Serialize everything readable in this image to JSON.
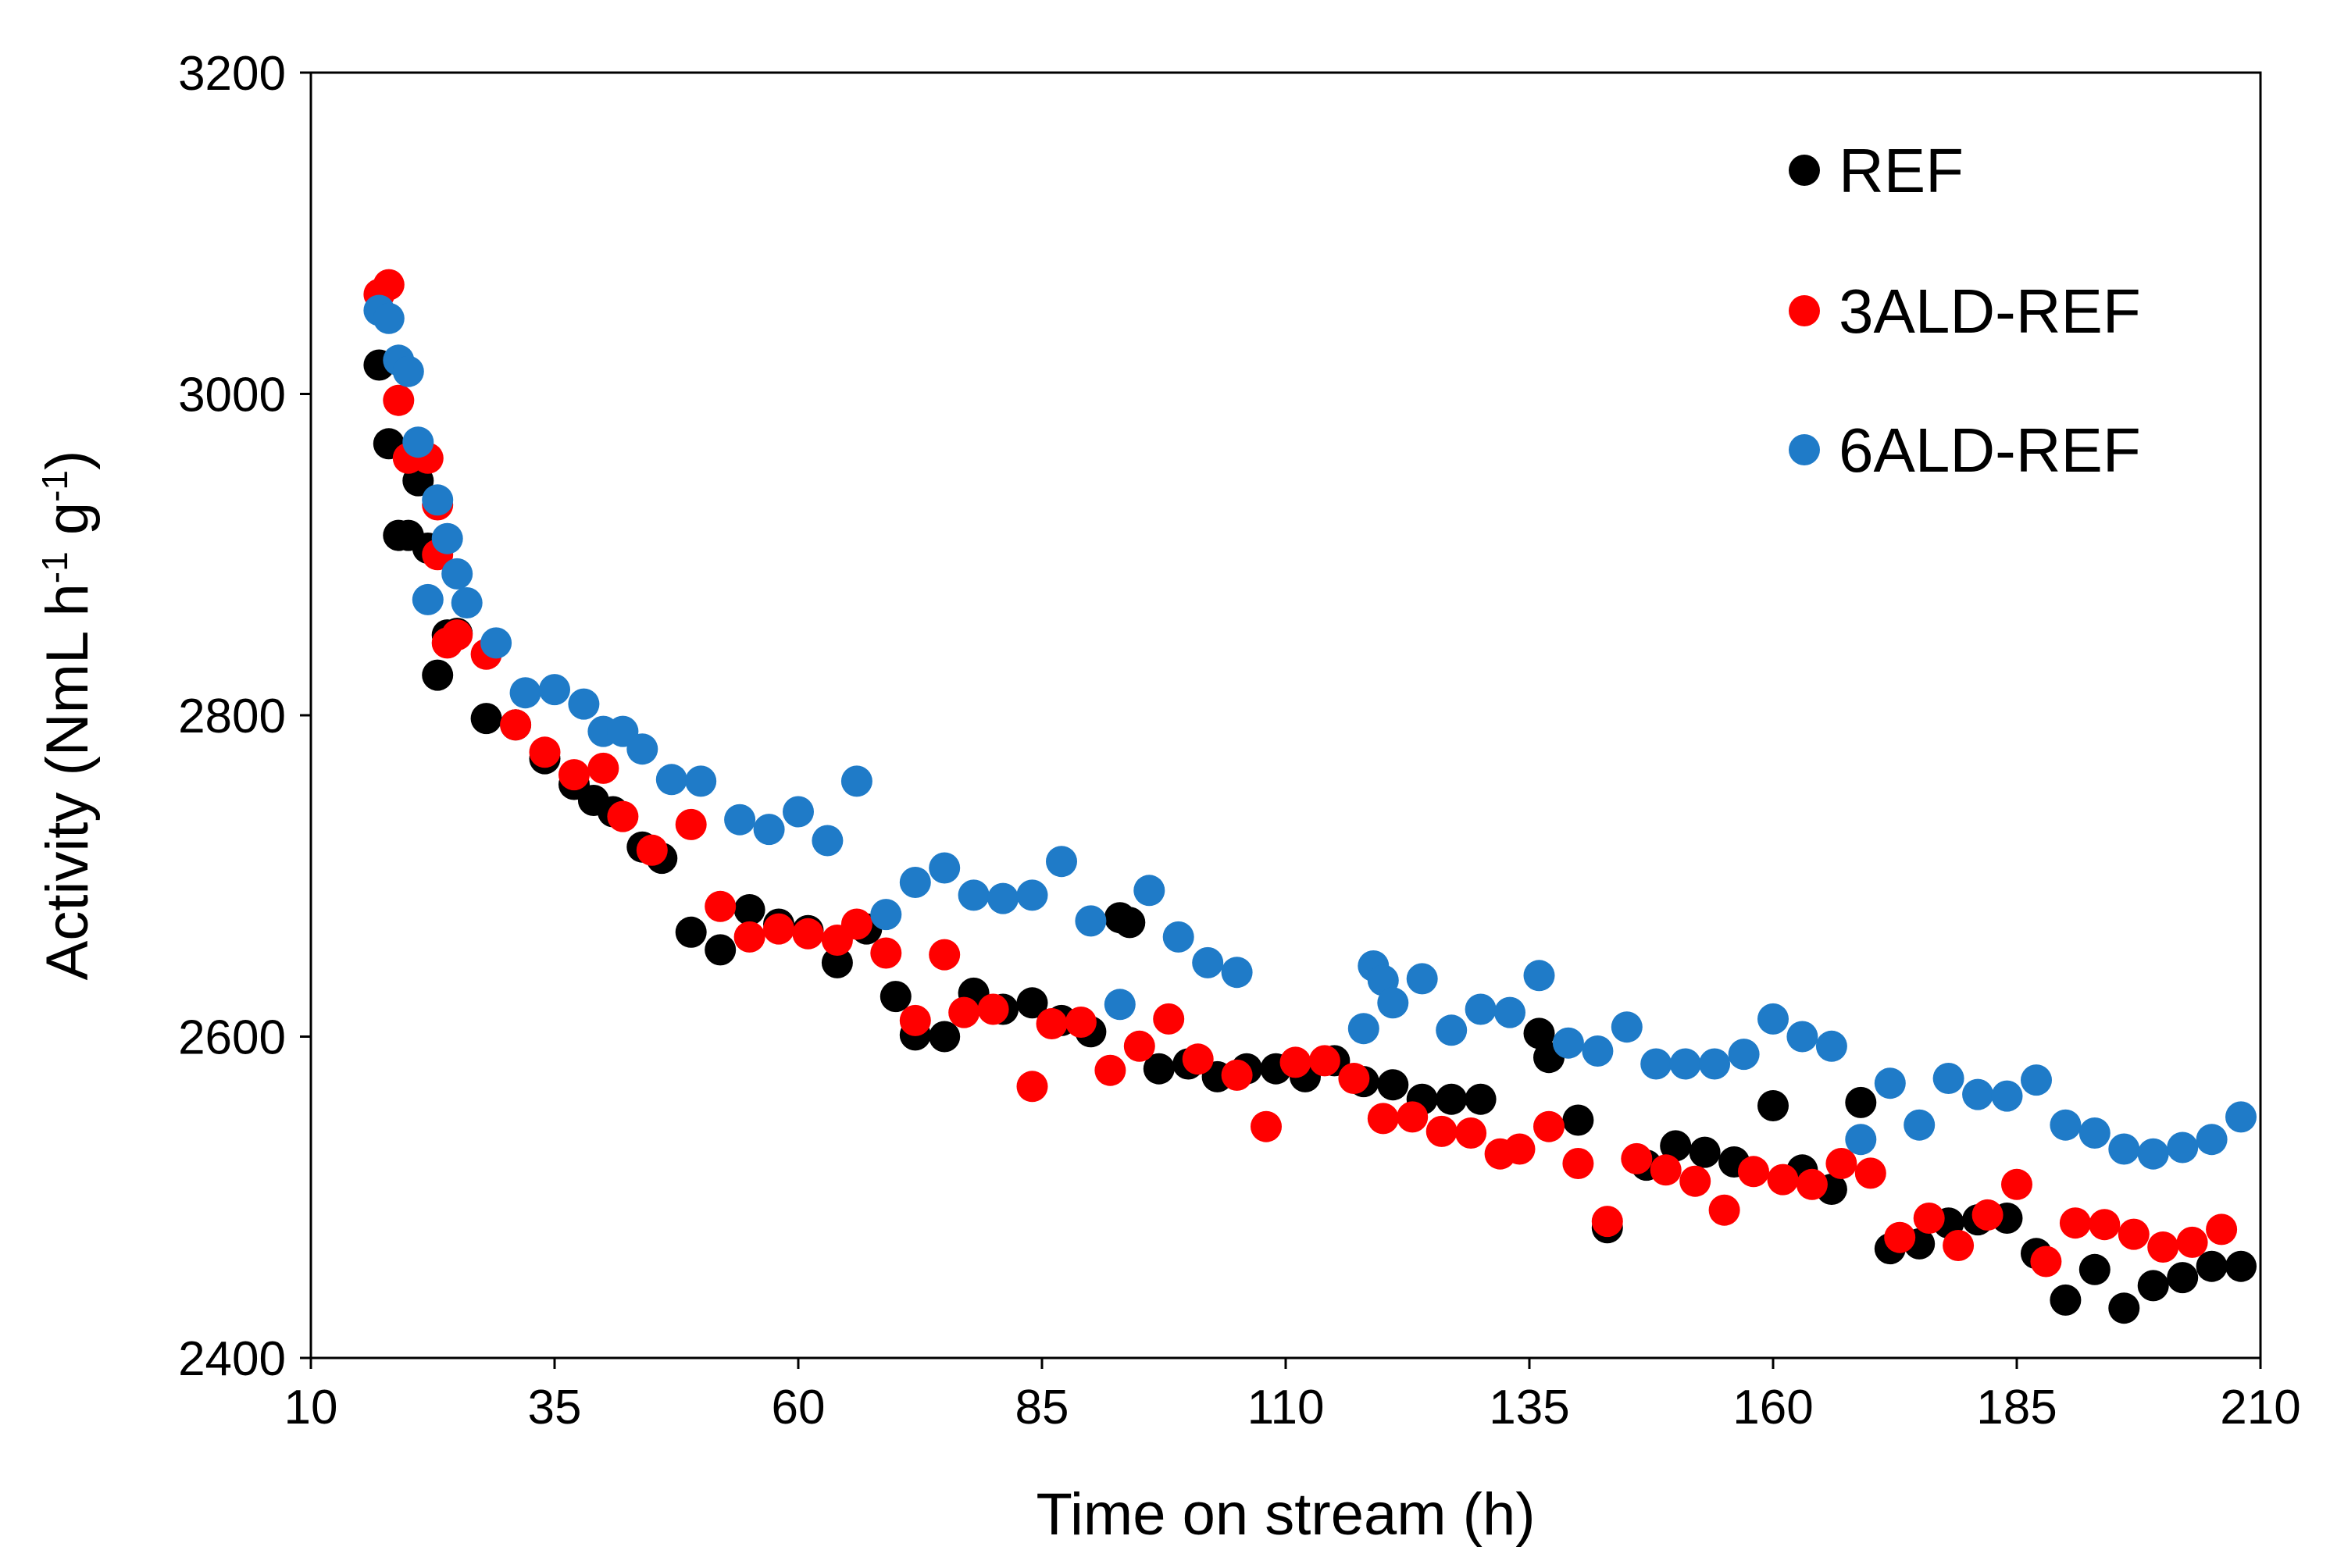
{
  "chart_data": {
    "type": "scatter",
    "xlabel": "Time on stream (h)",
    "ylabel": {
      "base": "Activity (NmL h",
      "sup1": "-1",
      "mid": " g",
      "sup2": "-1",
      "end": ")"
    },
    "xlim": [
      10,
      210
    ],
    "ylim": [
      2400,
      3200
    ],
    "x_ticks": [
      10,
      35,
      60,
      85,
      110,
      135,
      160,
      185,
      210
    ],
    "y_ticks": [
      2400,
      2600,
      2800,
      3000,
      3200
    ],
    "grid": false,
    "legend_position": "top-right",
    "series": [
      {
        "name": "REF",
        "color": "#000000",
        "points": [
          [
            17,
            3018
          ],
          [
            18,
            2969
          ],
          [
            19,
            2912
          ],
          [
            20,
            2912
          ],
          [
            21,
            2946
          ],
          [
            22,
            2904
          ],
          [
            23,
            2825
          ],
          [
            24,
            2850
          ],
          [
            25,
            2851
          ],
          [
            28,
            2798
          ],
          [
            31,
            2794
          ],
          [
            34,
            2773
          ],
          [
            37,
            2757
          ],
          [
            39,
            2747
          ],
          [
            41,
            2740
          ],
          [
            44,
            2718
          ],
          [
            46,
            2711
          ],
          [
            49,
            2665
          ],
          [
            52,
            2654
          ],
          [
            55,
            2679
          ],
          [
            58,
            2670
          ],
          [
            61,
            2666
          ],
          [
            64,
            2646
          ],
          [
            67,
            2667
          ],
          [
            70,
            2625
          ],
          [
            72,
            2601
          ],
          [
            75,
            2600
          ],
          [
            78,
            2627
          ],
          [
            81,
            2617
          ],
          [
            84,
            2621
          ],
          [
            87,
            2610
          ],
          [
            90,
            2603
          ],
          [
            93,
            2674
          ],
          [
            94,
            2671
          ],
          [
            97,
            2580
          ],
          [
            100,
            2583
          ],
          [
            103,
            2575
          ],
          [
            106,
            2580
          ],
          [
            109,
            2580
          ],
          [
            112,
            2575
          ],
          [
            115,
            2585
          ],
          [
            118,
            2572
          ],
          [
            121,
            2570
          ],
          [
            124,
            2561
          ],
          [
            127,
            2561
          ],
          [
            130,
            2561
          ],
          [
            136,
            2602
          ],
          [
            137,
            2587
          ],
          [
            140,
            2548
          ],
          [
            143,
            2481
          ],
          [
            147,
            2520
          ],
          [
            150,
            2532
          ],
          [
            153,
            2528
          ],
          [
            156,
            2522
          ],
          [
            160,
            2557
          ],
          [
            163,
            2517
          ],
          [
            166,
            2505
          ],
          [
            169,
            2559
          ],
          [
            172,
            2468
          ],
          [
            175,
            2471
          ],
          [
            178,
            2484
          ],
          [
            181,
            2486
          ],
          [
            184,
            2487
          ],
          [
            187,
            2465
          ],
          [
            190,
            2436
          ],
          [
            193,
            2455
          ],
          [
            196,
            2431
          ],
          [
            199,
            2445
          ],
          [
            202,
            2450
          ],
          [
            205,
            2457
          ],
          [
            208,
            2457
          ]
        ]
      },
      {
        "name": "3ALD-REF",
        "color": "#ff0000",
        "points": [
          [
            17,
            3062
          ],
          [
            18,
            3068
          ],
          [
            19,
            2996
          ],
          [
            20,
            2960
          ],
          [
            22,
            2960
          ],
          [
            23,
            2931
          ],
          [
            23,
            2900
          ],
          [
            24,
            2845
          ],
          [
            25,
            2850
          ],
          [
            28,
            2838
          ],
          [
            31,
            2794
          ],
          [
            34,
            2777
          ],
          [
            37,
            2763
          ],
          [
            40,
            2767
          ],
          [
            42,
            2737
          ],
          [
            45,
            2716
          ],
          [
            49,
            2732
          ],
          [
            52,
            2681
          ],
          [
            55,
            2662
          ],
          [
            58,
            2667
          ],
          [
            61,
            2664
          ],
          [
            64,
            2660
          ],
          [
            66,
            2670
          ],
          [
            69,
            2652
          ],
          [
            72,
            2610
          ],
          [
            75,
            2651
          ],
          [
            77,
            2615
          ],
          [
            80,
            2617
          ],
          [
            84,
            2569
          ],
          [
            86,
            2608
          ],
          [
            89,
            2609
          ],
          [
            92,
            2579
          ],
          [
            95,
            2594
          ],
          [
            98,
            2611
          ],
          [
            101,
            2586
          ],
          [
            105,
            2576
          ],
          [
            108,
            2544
          ],
          [
            111,
            2584
          ],
          [
            114,
            2585
          ],
          [
            117,
            2574
          ],
          [
            120,
            2549
          ],
          [
            123,
            2550
          ],
          [
            126,
            2541
          ],
          [
            129,
            2540
          ],
          [
            132,
            2527
          ],
          [
            134,
            2530
          ],
          [
            137,
            2544
          ],
          [
            140,
            2521
          ],
          [
            143,
            2485
          ],
          [
            146,
            2524
          ],
          [
            149,
            2517
          ],
          [
            152,
            2510
          ],
          [
            155,
            2492
          ],
          [
            158,
            2516
          ],
          [
            161,
            2511
          ],
          [
            164,
            2508
          ],
          [
            167,
            2521
          ],
          [
            170,
            2515
          ],
          [
            173,
            2475
          ],
          [
            176,
            2487
          ],
          [
            179,
            2470
          ],
          [
            182,
            2489
          ],
          [
            185,
            2508
          ],
          [
            188,
            2460
          ],
          [
            191,
            2484
          ],
          [
            194,
            2483
          ],
          [
            197,
            2477
          ],
          [
            200,
            2469
          ],
          [
            203,
            2472
          ],
          [
            206,
            2480
          ]
        ]
      },
      {
        "name": "6ALD-REF",
        "color": "#1f7bc8",
        "points": [
          [
            17,
            3052
          ],
          [
            18,
            3047
          ],
          [
            19,
            3021
          ],
          [
            20,
            3014
          ],
          [
            21,
            2970
          ],
          [
            22,
            2872
          ],
          [
            23,
            2934
          ],
          [
            24,
            2910
          ],
          [
            25,
            2888
          ],
          [
            26,
            2870
          ],
          [
            29,
            2845
          ],
          [
            32,
            2814
          ],
          [
            35,
            2816
          ],
          [
            38,
            2807
          ],
          [
            40,
            2790
          ],
          [
            42,
            2790
          ],
          [
            44,
            2779
          ],
          [
            47,
            2760
          ],
          [
            50,
            2759
          ],
          [
            54,
            2735
          ],
          [
            57,
            2729
          ],
          [
            60,
            2740
          ],
          [
            63,
            2722
          ],
          [
            66,
            2759
          ],
          [
            69,
            2676
          ],
          [
            72,
            2696
          ],
          [
            75,
            2705
          ],
          [
            78,
            2688
          ],
          [
            81,
            2686
          ],
          [
            84,
            2688
          ],
          [
            87,
            2709
          ],
          [
            90,
            2672
          ],
          [
            93,
            2620
          ],
          [
            96,
            2691
          ],
          [
            99,
            2662
          ],
          [
            102,
            2646
          ],
          [
            105,
            2640
          ],
          [
            118,
            2605
          ],
          [
            119,
            2644
          ],
          [
            120,
            2635
          ],
          [
            121,
            2621
          ],
          [
            124,
            2636
          ],
          [
            127,
            2604
          ],
          [
            130,
            2617
          ],
          [
            133,
            2615
          ],
          [
            136,
            2638
          ],
          [
            139,
            2596
          ],
          [
            142,
            2591
          ],
          [
            145,
            2606
          ],
          [
            148,
            2583
          ],
          [
            151,
            2583
          ],
          [
            154,
            2583
          ],
          [
            157,
            2589
          ],
          [
            160,
            2611
          ],
          [
            163,
            2600
          ],
          [
            166,
            2594
          ],
          [
            169,
            2536
          ],
          [
            172,
            2571
          ],
          [
            175,
            2545
          ],
          [
            178,
            2574
          ],
          [
            181,
            2564
          ],
          [
            184,
            2563
          ],
          [
            187,
            2573
          ],
          [
            190,
            2545
          ],
          [
            193,
            2540
          ],
          [
            196,
            2530
          ],
          [
            199,
            2527
          ],
          [
            202,
            2531
          ],
          [
            205,
            2536
          ],
          [
            208,
            2550
          ]
        ]
      }
    ]
  }
}
